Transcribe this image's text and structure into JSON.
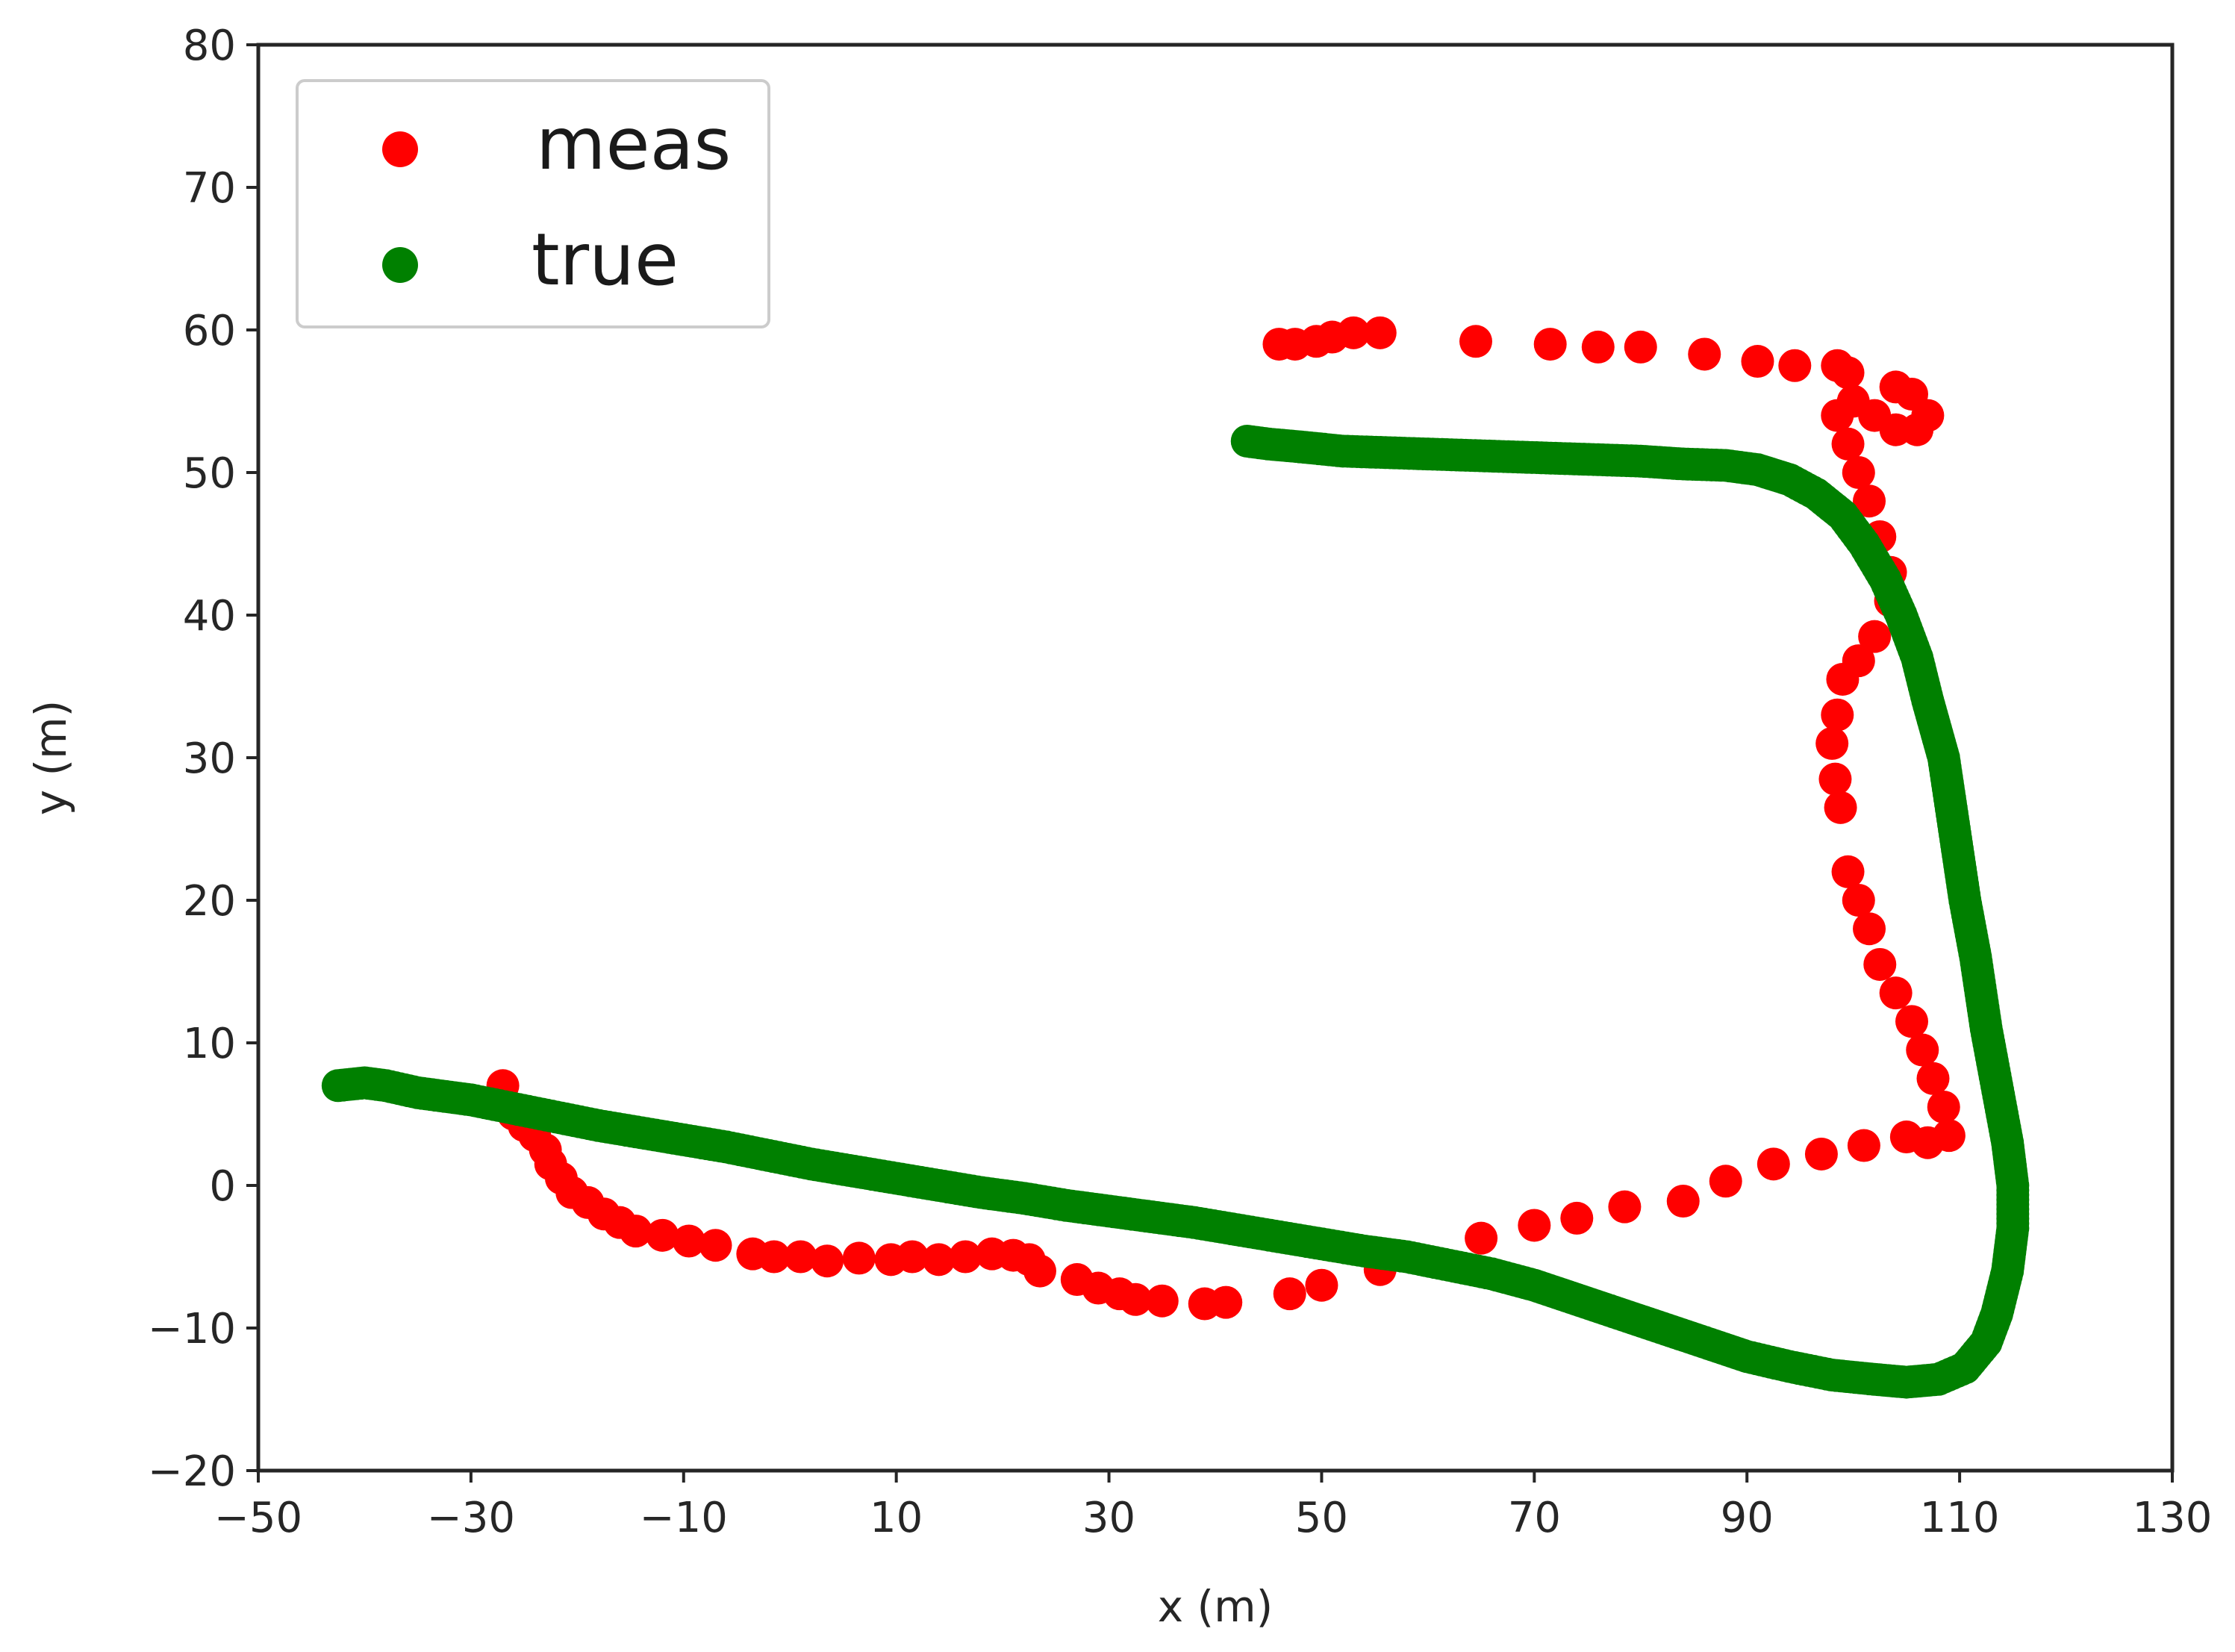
{
  "chart_data": {
    "type": "scatter",
    "xlabel": "x (m)",
    "ylabel": "y (m)",
    "xlim": [
      -50,
      130
    ],
    "ylim": [
      -20,
      80
    ],
    "xticks": [
      -50,
      -30,
      -10,
      10,
      30,
      50,
      70,
      90,
      110,
      130
    ],
    "yticks": [
      -20,
      -10,
      0,
      10,
      20,
      30,
      40,
      50,
      60,
      70,
      80
    ],
    "xtick_labels": [
      "−50",
      "−30",
      "−10",
      "10",
      "30",
      "50",
      "70",
      "90",
      "110",
      "130"
    ],
    "ytick_labels": [
      "−20",
      "−10",
      "0",
      "10",
      "20",
      "30",
      "40",
      "50",
      "60",
      "70",
      "80"
    ],
    "grid": false,
    "legend_position": "upper-left",
    "series": [
      {
        "name": "meas",
        "color": "#ff0000",
        "points": [
          [
            -27,
            7
          ],
          [
            -26,
            5
          ],
          [
            -25,
            4.2
          ],
          [
            -24,
            3.5
          ],
          [
            -23,
            2.5
          ],
          [
            -22.5,
            1.5
          ],
          [
            -21.5,
            0.5
          ],
          [
            -20.5,
            -0.5
          ],
          [
            -19,
            -1.2
          ],
          [
            -17.5,
            -2
          ],
          [
            -16,
            -2.6
          ],
          [
            -14.5,
            -3.2
          ],
          [
            -12,
            -3.5
          ],
          [
            -9.5,
            -3.9
          ],
          [
            -7,
            -4.2
          ],
          [
            -3.5,
            -4.8
          ],
          [
            -1.5,
            -5
          ],
          [
            1,
            -5
          ],
          [
            3.5,
            -5.3
          ],
          [
            6.5,
            -5.1
          ],
          [
            9.5,
            -5.2
          ],
          [
            11.5,
            -5
          ],
          [
            14,
            -5.2
          ],
          [
            16.5,
            -5
          ],
          [
            19,
            -4.8
          ],
          [
            21,
            -4.9
          ],
          [
            22.5,
            -5.2
          ],
          [
            23.5,
            -6
          ],
          [
            27,
            -6.6
          ],
          [
            29,
            -7.2
          ],
          [
            31,
            -7.6
          ],
          [
            32.5,
            -8
          ],
          [
            35,
            -8.1
          ],
          [
            39,
            -8.3
          ],
          [
            41,
            -8.2
          ],
          [
            47,
            -7.6
          ],
          [
            50,
            -7
          ],
          [
            55.5,
            -5.9
          ],
          [
            65,
            -3.7
          ],
          [
            70,
            -2.8
          ],
          [
            74,
            -2.3
          ],
          [
            78.5,
            -1.5
          ],
          [
            84,
            -1.1
          ],
          [
            88,
            0.3
          ],
          [
            92.5,
            1.5
          ],
          [
            97,
            2.2
          ],
          [
            101,
            2.8
          ],
          [
            105,
            3.4
          ],
          [
            107,
            3
          ],
          [
            109,
            3.5
          ],
          [
            108.5,
            5.5
          ],
          [
            107.5,
            7.5
          ],
          [
            106.5,
            9.5
          ],
          [
            105.5,
            11.5
          ],
          [
            104,
            13.5
          ],
          [
            102.5,
            15.5
          ],
          [
            101.5,
            18
          ],
          [
            100.5,
            20
          ],
          [
            99.5,
            22
          ],
          [
            98.8,
            26.5
          ],
          [
            98.3,
            28.5
          ],
          [
            98,
            31
          ],
          [
            98.5,
            33
          ],
          [
            99,
            35.5
          ],
          [
            100.5,
            36.8
          ],
          [
            102,
            38.5
          ],
          [
            103.5,
            41
          ],
          [
            103.5,
            43
          ],
          [
            102.5,
            45.5
          ],
          [
            101.5,
            48
          ],
          [
            100.5,
            50
          ],
          [
            99.5,
            52
          ],
          [
            98.5,
            54
          ],
          [
            100,
            55
          ],
          [
            102,
            54
          ],
          [
            104,
            53
          ],
          [
            106,
            53
          ],
          [
            107,
            54
          ],
          [
            105.5,
            55.5
          ],
          [
            104,
            56
          ],
          [
            99.5,
            57
          ],
          [
            98.5,
            57.5
          ],
          [
            94.5,
            57.5
          ],
          [
            91,
            57.8
          ],
          [
            86,
            58.3
          ],
          [
            80,
            58.8
          ],
          [
            76,
            58.8
          ],
          [
            71.5,
            59
          ],
          [
            64.5,
            59.2
          ],
          [
            55.5,
            59.8
          ],
          [
            53,
            59.8
          ],
          [
            51,
            59.5
          ],
          [
            49.5,
            59.2
          ],
          [
            47.5,
            59
          ],
          [
            46,
            59
          ]
        ]
      },
      {
        "name": "true",
        "color": "#008000",
        "points": [
          [
            -42.5,
            7
          ],
          [
            -40,
            7.2
          ],
          [
            -38,
            7
          ],
          [
            -35,
            6.5
          ],
          [
            -32,
            6.2
          ],
          [
            -30,
            6
          ],
          [
            -26,
            5.4
          ],
          [
            -22,
            4.8
          ],
          [
            -18,
            4.2
          ],
          [
            -14,
            3.7
          ],
          [
            -10,
            3.2
          ],
          [
            -6,
            2.7
          ],
          [
            -2,
            2.1
          ],
          [
            2,
            1.5
          ],
          [
            6,
            1
          ],
          [
            10,
            0.5
          ],
          [
            14,
            0
          ],
          [
            18,
            -0.5
          ],
          [
            22,
            -0.9
          ],
          [
            26,
            -1.4
          ],
          [
            30,
            -1.8
          ],
          [
            34,
            -2.2
          ],
          [
            38,
            -2.6
          ],
          [
            42,
            -3.1
          ],
          [
            46,
            -3.6
          ],
          [
            50,
            -4.1
          ],
          [
            54,
            -4.6
          ],
          [
            58,
            -5
          ],
          [
            62,
            -5.6
          ],
          [
            66,
            -6.2
          ],
          [
            70,
            -7
          ],
          [
            74,
            -8
          ],
          [
            78,
            -9
          ],
          [
            82,
            -10
          ],
          [
            86,
            -11
          ],
          [
            90,
            -12
          ],
          [
            94,
            -12.7
          ],
          [
            98,
            -13.3
          ],
          [
            102,
            -13.6
          ],
          [
            105,
            -13.8
          ],
          [
            108,
            -13.6
          ],
          [
            110.5,
            -12.8
          ],
          [
            112.5,
            -11
          ],
          [
            113.5,
            -9
          ],
          [
            114.5,
            -6
          ],
          [
            115,
            -3
          ],
          [
            115,
            0
          ],
          [
            114.5,
            3
          ],
          [
            113.5,
            7
          ],
          [
            112.5,
            11
          ],
          [
            111.5,
            16
          ],
          [
            110.5,
            20
          ],
          [
            109.5,
            25
          ],
          [
            108.5,
            30
          ],
          [
            107,
            34
          ],
          [
            106,
            37
          ],
          [
            104.5,
            40
          ],
          [
            103,
            42.5
          ],
          [
            101,
            45
          ],
          [
            99,
            47
          ],
          [
            96.5,
            48.5
          ],
          [
            94,
            49.5
          ],
          [
            91,
            50.2
          ],
          [
            88,
            50.5
          ],
          [
            84,
            50.6
          ],
          [
            80,
            50.8
          ],
          [
            76,
            50.9
          ],
          [
            72,
            51
          ],
          [
            68,
            51.1
          ],
          [
            64,
            51.2
          ],
          [
            60,
            51.3
          ],
          [
            56,
            51.4
          ],
          [
            52,
            51.5
          ],
          [
            48,
            51.8
          ],
          [
            45,
            52
          ],
          [
            43,
            52.2
          ]
        ]
      }
    ]
  }
}
